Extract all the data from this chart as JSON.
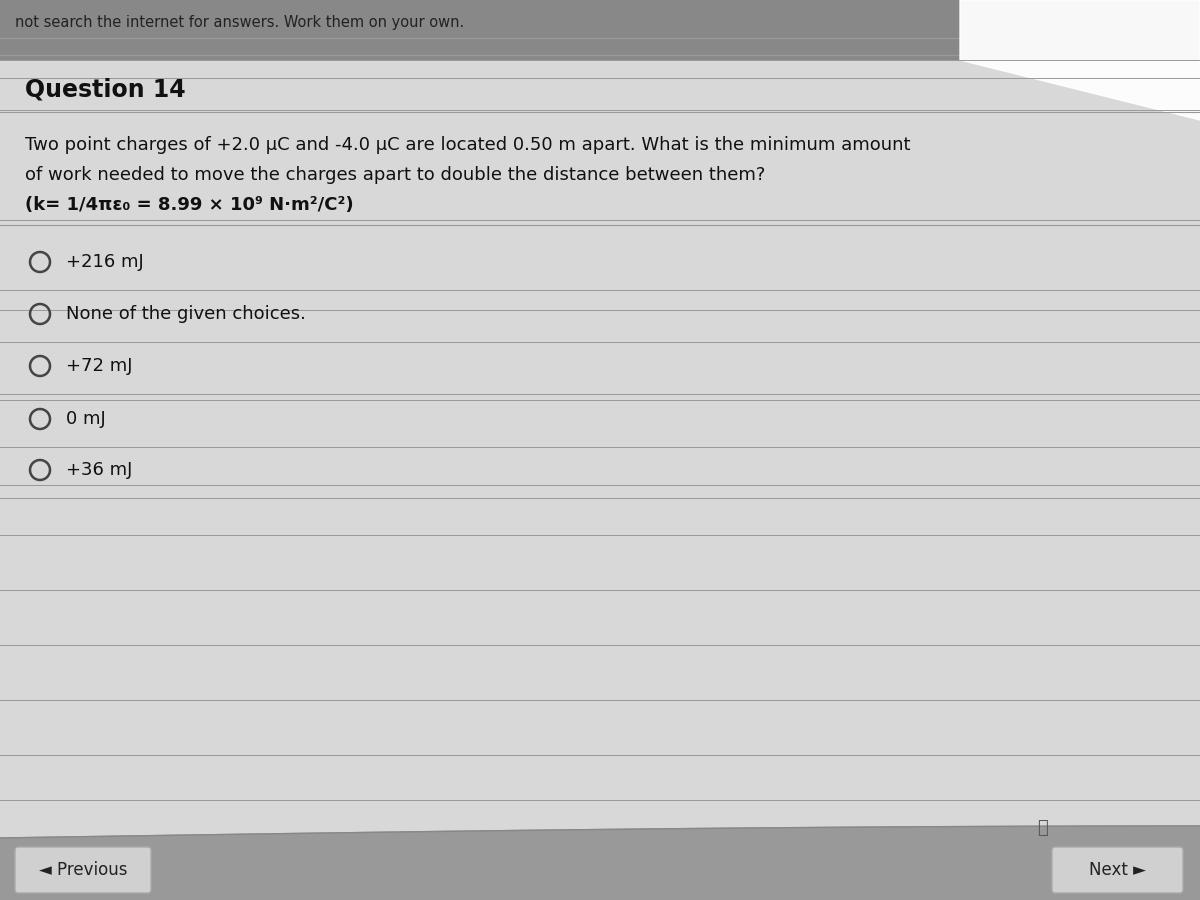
{
  "question_number": "Question 14",
  "question_text_line1": "Two point charges of +2.0 μC and -4.0 μC are located 0.50 m apart. What is the minimum amount",
  "question_text_line2": "of work needed to move the charges apart to double the distance between them?",
  "question_text_line3": "(k= 1/4πε₀ = 8.99 × 10⁹ N·m²/C²)",
  "choices": [
    "+216 mJ",
    "None of the given choices.",
    "+72 mJ",
    "0 mJ",
    "+36 mJ"
  ],
  "header_text": "not search the internet for answers. Work them on your own.",
  "bg_color_top": "#888888",
  "bg_color_bottom": "#aaaaaa",
  "page_color": "#d8d8d8",
  "white_box_color": "#ffffff",
  "separator_color": "#bbbbbb",
  "separator_dark": "#999999",
  "text_color": "#111111",
  "button_bg": "#d0d0d0",
  "button_border": "#aaaaaa",
  "button_text_color": "#222222",
  "radio_color": "#444444",
  "header_stripe_color": "#c0c0c0",
  "header_line_color": "#999999"
}
